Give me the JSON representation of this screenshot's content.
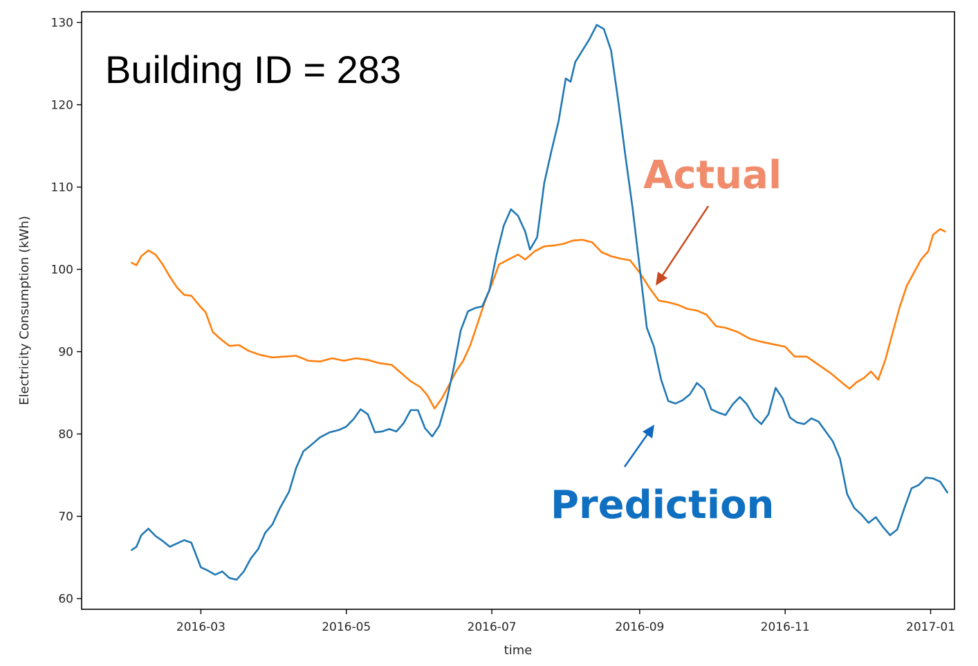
{
  "chart_data": {
    "type": "line",
    "title": "",
    "xlabel": "time",
    "ylabel": "Electricity Consumption (kWh)",
    "xlim": [
      "2016-01-11",
      "2017-01-11"
    ],
    "ylim": [
      58.7,
      131.3
    ],
    "x_ticks": [
      "2016-03",
      "2016-05",
      "2016-07",
      "2016-09",
      "2016-11",
      "2017-01"
    ],
    "x_tick_dates": [
      "2016-03-01",
      "2016-05-01",
      "2016-07-01",
      "2016-09-01",
      "2016-11-01",
      "2017-01-01"
    ],
    "y_ticks": [
      60,
      70,
      80,
      90,
      100,
      110,
      120,
      130
    ],
    "y_tick_labels": [
      "60",
      "70",
      "80",
      "90",
      "100",
      "110",
      "120",
      "130"
    ],
    "grid": false,
    "annotations": {
      "building": "Building ID = 283",
      "actual": "Actual",
      "prediction": "Prediction"
    },
    "series": [
      {
        "name": "Actual",
        "color": "#ff7f0e",
        "points": [
          [
            "2016-02-01",
            100.8
          ],
          [
            "2016-02-03",
            100.5
          ],
          [
            "2016-02-05",
            101.6
          ],
          [
            "2016-02-08",
            102.3
          ],
          [
            "2016-02-11",
            101.8
          ],
          [
            "2016-02-14",
            100.6
          ],
          [
            "2016-02-17",
            99.1
          ],
          [
            "2016-02-20",
            97.8
          ],
          [
            "2016-02-23",
            96.9
          ],
          [
            "2016-02-26",
            96.8
          ],
          [
            "2016-03-01",
            95.4
          ],
          [
            "2016-03-03",
            94.8
          ],
          [
            "2016-03-06",
            92.4
          ],
          [
            "2016-03-09",
            91.6
          ],
          [
            "2016-03-13",
            90.7
          ],
          [
            "2016-03-17",
            90.8
          ],
          [
            "2016-03-21",
            90.1
          ],
          [
            "2016-03-26",
            89.6
          ],
          [
            "2016-03-31",
            89.3
          ],
          [
            "2016-04-05",
            89.4
          ],
          [
            "2016-04-10",
            89.5
          ],
          [
            "2016-04-15",
            88.9
          ],
          [
            "2016-04-20",
            88.8
          ],
          [
            "2016-04-25",
            89.2
          ],
          [
            "2016-04-30",
            88.9
          ],
          [
            "2016-05-05",
            89.2
          ],
          [
            "2016-05-10",
            89.0
          ],
          [
            "2016-05-15",
            88.6
          ],
          [
            "2016-05-20",
            88.4
          ],
          [
            "2016-05-24",
            87.4
          ],
          [
            "2016-05-28",
            86.4
          ],
          [
            "2016-06-01",
            85.7
          ],
          [
            "2016-06-04",
            84.7
          ],
          [
            "2016-06-07",
            83.1
          ],
          [
            "2016-06-10",
            84.3
          ],
          [
            "2016-06-13",
            85.9
          ],
          [
            "2016-06-16",
            87.6
          ],
          [
            "2016-06-19",
            88.9
          ],
          [
            "2016-06-22",
            90.8
          ],
          [
            "2016-06-25",
            93.4
          ],
          [
            "2016-06-28",
            96.0
          ],
          [
            "2016-07-01",
            98.2
          ],
          [
            "2016-07-04",
            100.6
          ],
          [
            "2016-07-08",
            101.2
          ],
          [
            "2016-07-12",
            101.8
          ],
          [
            "2016-07-15",
            101.2
          ],
          [
            "2016-07-19",
            102.2
          ],
          [
            "2016-07-23",
            102.8
          ],
          [
            "2016-07-27",
            102.9
          ],
          [
            "2016-07-31",
            103.1
          ],
          [
            "2016-08-04",
            103.5
          ],
          [
            "2016-08-08",
            103.6
          ],
          [
            "2016-08-12",
            103.3
          ],
          [
            "2016-08-16",
            102.1
          ],
          [
            "2016-08-20",
            101.6
          ],
          [
            "2016-08-24",
            101.3
          ],
          [
            "2016-08-28",
            101.1
          ],
          [
            "2016-09-01",
            99.6
          ],
          [
            "2016-09-05",
            97.8
          ],
          [
            "2016-09-09",
            96.2
          ],
          [
            "2016-09-13",
            96.0
          ],
          [
            "2016-09-17",
            95.7
          ],
          [
            "2016-09-21",
            95.2
          ],
          [
            "2016-09-25",
            95.0
          ],
          [
            "2016-09-29",
            94.5
          ],
          [
            "2016-10-03",
            93.1
          ],
          [
            "2016-10-07",
            92.9
          ],
          [
            "2016-10-12",
            92.4
          ],
          [
            "2016-10-17",
            91.6
          ],
          [
            "2016-10-22",
            91.2
          ],
          [
            "2016-10-27",
            90.9
          ],
          [
            "2016-11-01",
            90.6
          ],
          [
            "2016-11-05",
            89.4
          ],
          [
            "2016-11-10",
            89.4
          ],
          [
            "2016-11-15",
            88.4
          ],
          [
            "2016-11-20",
            87.4
          ],
          [
            "2016-11-25",
            86.2
          ],
          [
            "2016-11-28",
            85.5
          ],
          [
            "2016-12-01",
            86.3
          ],
          [
            "2016-12-04",
            86.8
          ],
          [
            "2016-12-07",
            87.6
          ],
          [
            "2016-12-10",
            86.6
          ],
          [
            "2016-12-13",
            89.0
          ],
          [
            "2016-12-16",
            92.2
          ],
          [
            "2016-12-19",
            95.4
          ],
          [
            "2016-12-22",
            98.0
          ],
          [
            "2016-12-25",
            99.6
          ],
          [
            "2016-12-28",
            101.2
          ],
          [
            "2016-12-31",
            102.2
          ],
          [
            "2017-01-02",
            104.2
          ],
          [
            "2017-01-05",
            104.9
          ],
          [
            "2017-01-07",
            104.6
          ]
        ]
      },
      {
        "name": "Prediction",
        "color": "#1f77b4",
        "points": [
          [
            "2016-02-01",
            65.9
          ],
          [
            "2016-02-03",
            66.3
          ],
          [
            "2016-02-05",
            67.7
          ],
          [
            "2016-02-08",
            68.5
          ],
          [
            "2016-02-11",
            67.6
          ],
          [
            "2016-02-14",
            67.0
          ],
          [
            "2016-02-17",
            66.3
          ],
          [
            "2016-02-20",
            66.7
          ],
          [
            "2016-02-23",
            67.1
          ],
          [
            "2016-02-26",
            66.8
          ],
          [
            "2016-02-28",
            65.3
          ],
          [
            "2016-03-01",
            63.8
          ],
          [
            "2016-03-04",
            63.4
          ],
          [
            "2016-03-07",
            62.9
          ],
          [
            "2016-03-10",
            63.3
          ],
          [
            "2016-03-13",
            62.5
          ],
          [
            "2016-03-16",
            62.3
          ],
          [
            "2016-03-19",
            63.3
          ],
          [
            "2016-03-22",
            64.9
          ],
          [
            "2016-03-25",
            66.0
          ],
          [
            "2016-03-28",
            68.0
          ],
          [
            "2016-03-31",
            69.0
          ],
          [
            "2016-04-03",
            70.9
          ],
          [
            "2016-04-07",
            73.0
          ],
          [
            "2016-04-10",
            75.9
          ],
          [
            "2016-04-13",
            77.9
          ],
          [
            "2016-04-16",
            78.6
          ],
          [
            "2016-04-20",
            79.6
          ],
          [
            "2016-04-24",
            80.2
          ],
          [
            "2016-04-28",
            80.5
          ],
          [
            "2016-05-01",
            80.9
          ],
          [
            "2016-05-04",
            81.8
          ],
          [
            "2016-05-07",
            83.0
          ],
          [
            "2016-05-10",
            82.4
          ],
          [
            "2016-05-13",
            80.2
          ],
          [
            "2016-05-16",
            80.3
          ],
          [
            "2016-05-19",
            80.6
          ],
          [
            "2016-05-22",
            80.3
          ],
          [
            "2016-05-25",
            81.3
          ],
          [
            "2016-05-28",
            82.9
          ],
          [
            "2016-05-31",
            82.9
          ],
          [
            "2016-06-03",
            80.7
          ],
          [
            "2016-06-06",
            79.7
          ],
          [
            "2016-06-09",
            81.0
          ],
          [
            "2016-06-12",
            84.0
          ],
          [
            "2016-06-15",
            88.0
          ],
          [
            "2016-06-18",
            92.6
          ],
          [
            "2016-06-21",
            94.9
          ],
          [
            "2016-06-24",
            95.3
          ],
          [
            "2016-06-27",
            95.5
          ],
          [
            "2016-06-30",
            97.5
          ],
          [
            "2016-07-03",
            101.8
          ],
          [
            "2016-07-06",
            105.3
          ],
          [
            "2016-07-09",
            107.3
          ],
          [
            "2016-07-12",
            106.5
          ],
          [
            "2016-07-15",
            104.6
          ],
          [
            "2016-07-17",
            102.4
          ],
          [
            "2016-07-20",
            103.9
          ],
          [
            "2016-07-23",
            110.5
          ],
          [
            "2016-07-26",
            114.4
          ],
          [
            "2016-07-29",
            118.0
          ],
          [
            "2016-08-01",
            123.2
          ],
          [
            "2016-08-03",
            122.8
          ],
          [
            "2016-08-05",
            125.2
          ],
          [
            "2016-08-08",
            126.6
          ],
          [
            "2016-08-11",
            128.0
          ],
          [
            "2016-08-14",
            129.7
          ],
          [
            "2016-08-17",
            129.2
          ],
          [
            "2016-08-20",
            126.6
          ],
          [
            "2016-08-23",
            120.5
          ],
          [
            "2016-08-26",
            113.8
          ],
          [
            "2016-08-29",
            107.5
          ],
          [
            "2016-09-01",
            100.2
          ],
          [
            "2016-09-04",
            92.9
          ],
          [
            "2016-09-07",
            90.6
          ],
          [
            "2016-09-10",
            86.6
          ],
          [
            "2016-09-13",
            84.0
          ],
          [
            "2016-09-16",
            83.7
          ],
          [
            "2016-09-19",
            84.1
          ],
          [
            "2016-09-22",
            84.8
          ],
          [
            "2016-09-25",
            86.2
          ],
          [
            "2016-09-28",
            85.4
          ],
          [
            "2016-10-01",
            83.0
          ],
          [
            "2016-10-04",
            82.6
          ],
          [
            "2016-10-07",
            82.3
          ],
          [
            "2016-10-10",
            83.6
          ],
          [
            "2016-10-13",
            84.5
          ],
          [
            "2016-10-16",
            83.6
          ],
          [
            "2016-10-19",
            82.0
          ],
          [
            "2016-10-22",
            81.2
          ],
          [
            "2016-10-25",
            82.4
          ],
          [
            "2016-10-28",
            85.6
          ],
          [
            "2016-10-31",
            84.3
          ],
          [
            "2016-11-03",
            82.0
          ],
          [
            "2016-11-06",
            81.4
          ],
          [
            "2016-11-09",
            81.2
          ],
          [
            "2016-11-12",
            81.9
          ],
          [
            "2016-11-15",
            81.5
          ],
          [
            "2016-11-18",
            80.3
          ],
          [
            "2016-11-21",
            79.1
          ],
          [
            "2016-11-24",
            77.0
          ],
          [
            "2016-11-27",
            72.7
          ],
          [
            "2016-11-30",
            71.0
          ],
          [
            "2016-12-03",
            70.2
          ],
          [
            "2016-12-06",
            69.2
          ],
          [
            "2016-12-09",
            69.9
          ],
          [
            "2016-12-12",
            68.7
          ],
          [
            "2016-12-15",
            67.7
          ],
          [
            "2016-12-18",
            68.4
          ],
          [
            "2016-12-21",
            71.0
          ],
          [
            "2016-12-24",
            73.4
          ],
          [
            "2016-12-27",
            73.8
          ],
          [
            "2016-12-30",
            74.7
          ],
          [
            "2017-01-02",
            74.6
          ],
          [
            "2017-01-05",
            74.2
          ],
          [
            "2017-01-08",
            72.9
          ]
        ]
      }
    ]
  }
}
